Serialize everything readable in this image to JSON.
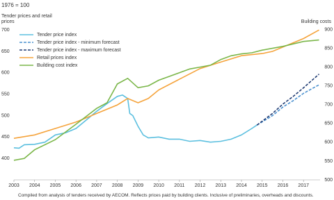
{
  "chart_data": {
    "type": "line",
    "subtitle": "1976 = 100",
    "y_label": "Tender prices and retail prices",
    "y2_label": "Building costs",
    "note": "Compiled from analysis of tenders received by AECOM. Reflects prices paid by building clients. Inclusive of preliminaries, overheads and discounts.",
    "xlim": [
      2003,
      2017.8
    ],
    "xticks": [
      2003,
      2004,
      2005,
      2006,
      2007,
      2008,
      2009,
      2010,
      2011,
      2012,
      2013,
      2014,
      2015,
      2016,
      2017
    ],
    "ylim": [
      350,
      710
    ],
    "yticks": [
      400,
      450,
      500,
      550,
      600,
      650,
      700
    ],
    "y2lim": [
      500,
      910
    ],
    "y2ticks": [
      500,
      550,
      600,
      650,
      700,
      750,
      800,
      850,
      900
    ],
    "legend": "upper left",
    "series": [
      {
        "name": "Tender price index",
        "color": "#5bbfdf",
        "style": "solid",
        "axis": "y",
        "x": [
          2003,
          2003.25,
          2003.5,
          2004,
          2004.5,
          2005,
          2005.5,
          2006,
          2006.5,
          2007,
          2007.5,
          2008,
          2008.25,
          2008.5,
          2008.6,
          2008.75,
          2009,
          2009.25,
          2009.5,
          2010,
          2010.5,
          2011,
          2011.5,
          2012,
          2012.5,
          2013,
          2013.5,
          2014,
          2014.5,
          2014.75
        ],
        "values": [
          425,
          424,
          432,
          433,
          438,
          455,
          460,
          470,
          490,
          510,
          528,
          545,
          548,
          540,
          505,
          500,
          475,
          455,
          448,
          450,
          445,
          445,
          440,
          442,
          438,
          440,
          445,
          455,
          470,
          478
        ]
      },
      {
        "name": "Tender price index - minimum forecast",
        "color": "#4a90cf",
        "style": "dashed",
        "axis": "y",
        "x": [
          2014.75,
          2015.5,
          2016,
          2016.5,
          2017,
          2017.75
        ],
        "values": [
          478,
          500,
          520,
          535,
          552,
          572
        ]
      },
      {
        "name": "Tender price index - maximum forecast",
        "color": "#1f3b73",
        "style": "dashed",
        "axis": "y",
        "x": [
          2014.75,
          2015.5,
          2016,
          2016.5,
          2017,
          2017.75
        ],
        "values": [
          478,
          505,
          527,
          545,
          565,
          597
        ]
      },
      {
        "name": "Retail prices index",
        "color": "#f5a33b",
        "style": "solid",
        "axis": "y",
        "x": [
          2003,
          2004,
          2005,
          2006,
          2007,
          2008,
          2008.5,
          2009,
          2009.5,
          2010,
          2011,
          2012,
          2013,
          2014,
          2015,
          2015.5,
          2016,
          2017,
          2017.75
        ],
        "values": [
          447,
          455,
          470,
          485,
          505,
          525,
          540,
          530,
          540,
          560,
          585,
          610,
          625,
          640,
          645,
          650,
          660,
          680,
          700
        ]
      },
      {
        "name": "Building cost index",
        "color": "#7ab648",
        "style": "solid",
        "axis": "y2",
        "x": [
          2003,
          2003.5,
          2004,
          2005,
          2006,
          2007,
          2007.5,
          2008,
          2008.5,
          2009,
          2009.5,
          2010,
          2010.5,
          2011,
          2011.5,
          2012,
          2012.5,
          2013,
          2013.5,
          2014,
          2014.5,
          2015,
          2016,
          2017,
          2017.75
        ],
        "values": [
          552,
          557,
          580,
          607,
          648,
          690,
          705,
          755,
          770,
          745,
          750,
          765,
          775,
          785,
          795,
          800,
          805,
          820,
          830,
          835,
          838,
          845,
          855,
          868,
          872
        ]
      }
    ]
  }
}
